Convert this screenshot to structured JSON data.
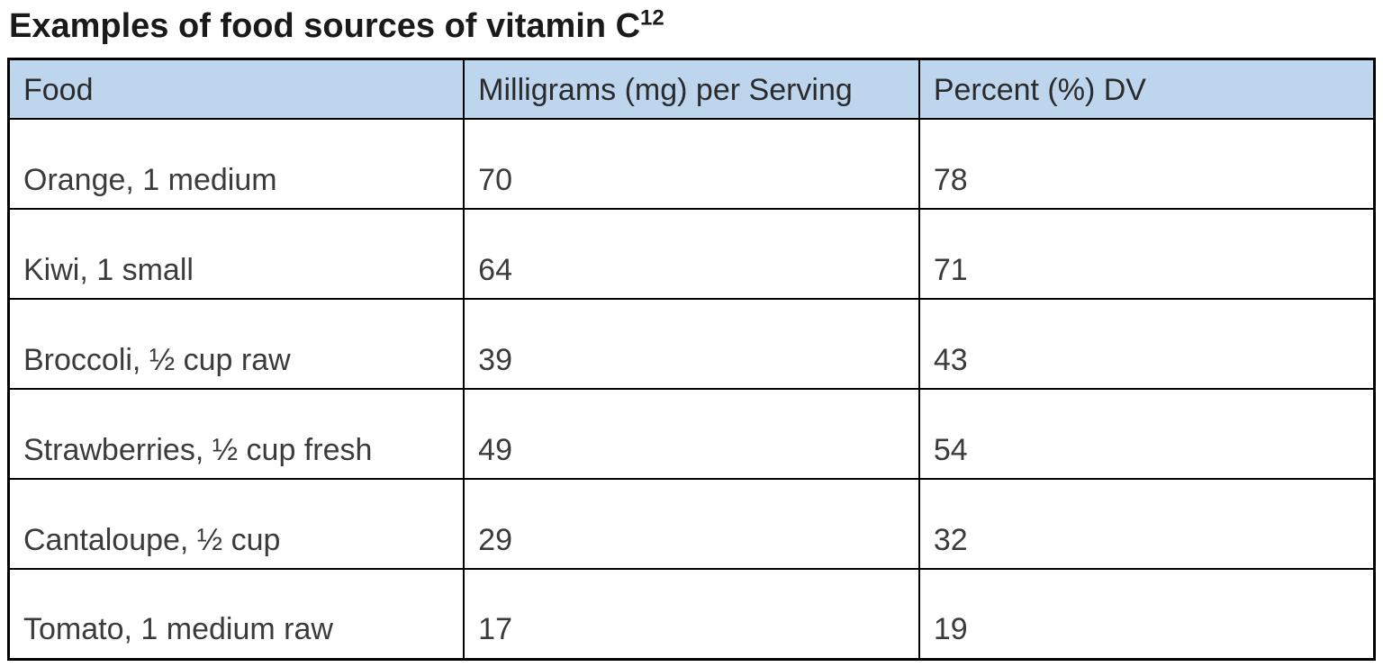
{
  "page": {
    "title": "Examples of food sources of vitamin C",
    "title_superscript": "12"
  },
  "table": {
    "header_bg_color": "#bdd6ee",
    "border_color": "#000000",
    "columns": [
      "Food",
      "Milligrams (mg) per Serving",
      "Percent (%) DV"
    ],
    "rows": [
      {
        "food": "Orange, 1 medium",
        "mg": "70",
        "dv": "78"
      },
      {
        "food": "Kiwi, 1 small",
        "mg": "64",
        "dv": "71"
      },
      {
        "food": "Broccoli, ½ cup raw",
        "mg": "39",
        "dv": "43"
      },
      {
        "food": "Strawberries, ½ cup fresh",
        "mg": "49",
        "dv": "54"
      },
      {
        "food": "Cantaloupe, ½ cup",
        "mg": "29",
        "dv": "32"
      },
      {
        "food": "Tomato, 1 medium raw",
        "mg": "17",
        "dv": "19"
      }
    ]
  }
}
